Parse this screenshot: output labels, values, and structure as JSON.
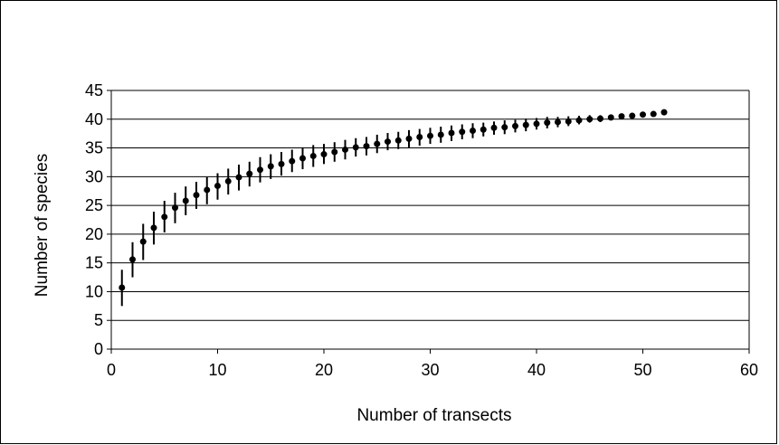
{
  "chart_data": {
    "type": "scatter",
    "title": "",
    "xlabel": "Number of transects",
    "ylabel": "Number of species",
    "xlim": [
      0,
      60
    ],
    "ylim": [
      0,
      45
    ],
    "x_ticks": [
      0,
      10,
      20,
      30,
      40,
      50,
      60
    ],
    "y_ticks": [
      0,
      5,
      10,
      15,
      20,
      25,
      30,
      35,
      40,
      45
    ],
    "grid": "horizontal",
    "legend": "none",
    "colors": {
      "marker": "#000000",
      "grid": "#000000",
      "frame": "#000000",
      "background": "#ffffff"
    },
    "series": [
      {
        "x": [
          1,
          2,
          3,
          4,
          5,
          6,
          7,
          8,
          9,
          10,
          11,
          12,
          13,
          14,
          15,
          16,
          17,
          18,
          19,
          20,
          21,
          22,
          23,
          24,
          25,
          26,
          27,
          28,
          29,
          30,
          31,
          32,
          33,
          34,
          35,
          36,
          37,
          38,
          39,
          40,
          41,
          42,
          43,
          44,
          45,
          46,
          47,
          48,
          49,
          50,
          51,
          52
        ],
        "y": [
          10.7,
          15.6,
          18.7,
          21.1,
          23.0,
          24.6,
          25.8,
          26.8,
          27.7,
          28.4,
          29.2,
          29.9,
          30.5,
          31.2,
          31.8,
          32.2,
          32.7,
          33.2,
          33.6,
          33.9,
          34.3,
          34.7,
          35.1,
          35.3,
          35.7,
          36.1,
          36.3,
          36.6,
          36.9,
          37.1,
          37.3,
          37.6,
          37.8,
          38.0,
          38.2,
          38.5,
          38.6,
          38.8,
          39.0,
          39.2,
          39.4,
          39.5,
          39.6,
          39.8,
          40.0,
          40.1,
          40.3,
          40.5,
          40.6,
          40.8,
          40.9,
          41.2
        ],
        "err_low": [
          7.5,
          12.5,
          15.5,
          18.2,
          20.3,
          21.9,
          23.3,
          24.4,
          25.2,
          26.0,
          26.9,
          27.6,
          28.3,
          29.0,
          29.6,
          30.2,
          30.8,
          31.3,
          31.7,
          32.2,
          32.6,
          33.0,
          33.5,
          33.7,
          34.1,
          34.6,
          34.8,
          35.1,
          35.4,
          35.7,
          35.9,
          36.2,
          36.5,
          36.7,
          37.0,
          37.3,
          37.4,
          37.7,
          37.9,
          38.2,
          38.4,
          38.6,
          38.8,
          39.1,
          39.4,
          39.5,
          39.8,
          40.1,
          40.3,
          40.5,
          40.7,
          41.2
        ],
        "err_high": [
          13.8,
          18.6,
          21.8,
          23.9,
          25.8,
          27.2,
          28.3,
          29.1,
          29.9,
          30.6,
          31.4,
          32.1,
          32.6,
          33.4,
          33.9,
          34.3,
          34.7,
          35.1,
          35.5,
          35.7,
          36.0,
          36.4,
          36.7,
          36.9,
          37.3,
          37.6,
          37.8,
          38.1,
          38.3,
          38.5,
          38.7,
          38.9,
          39.1,
          39.3,
          39.4,
          39.6,
          39.8,
          39.9,
          40.1,
          40.2,
          40.4,
          40.4,
          40.5,
          40.6,
          40.7,
          40.7,
          40.8,
          40.9,
          40.9,
          41.0,
          41.1,
          41.2
        ]
      }
    ]
  }
}
